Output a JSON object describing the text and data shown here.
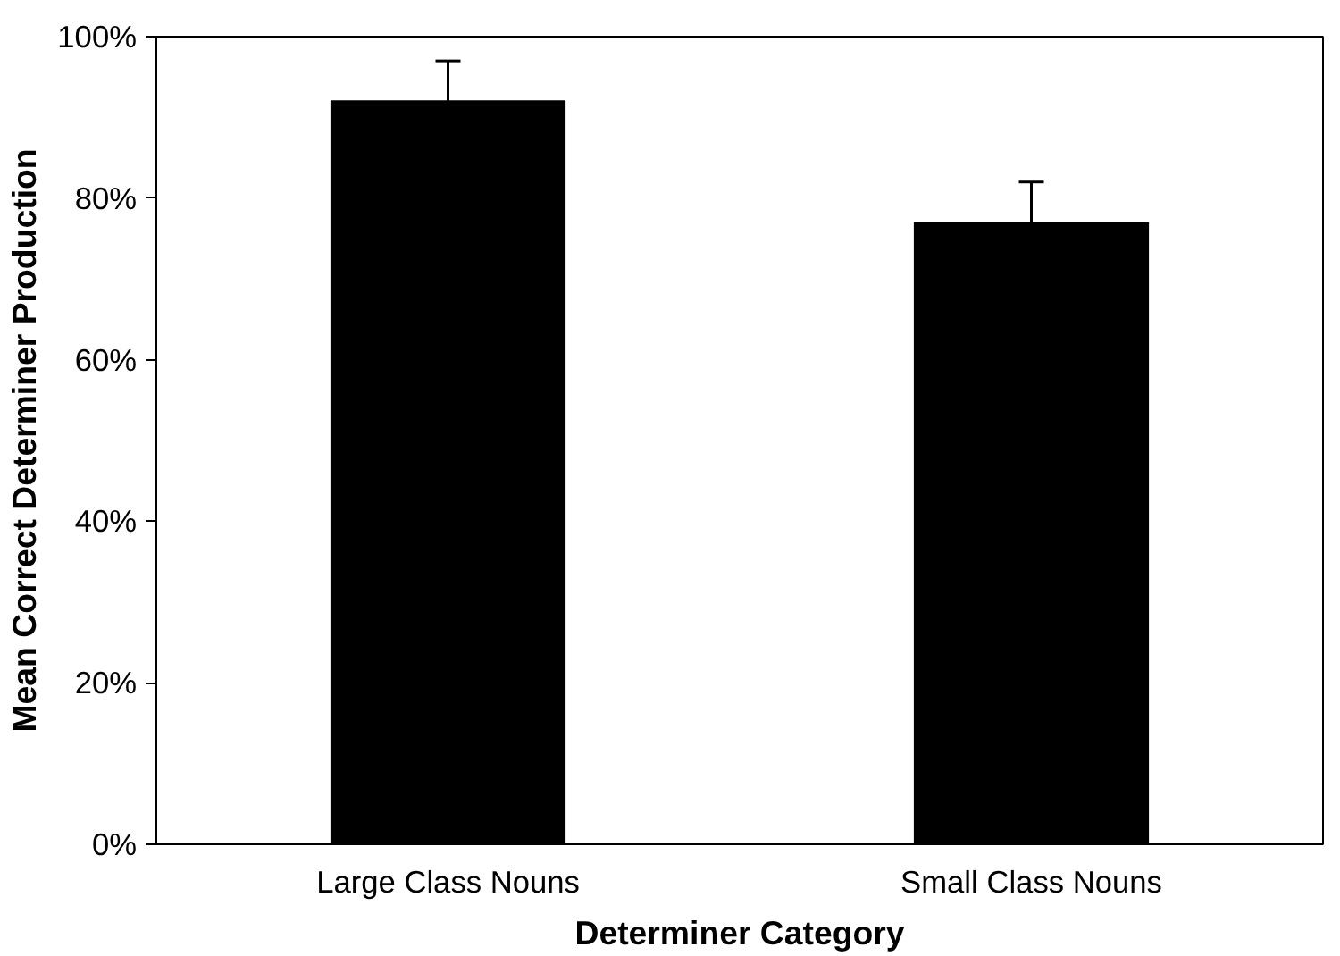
{
  "chart_data": {
    "type": "bar",
    "xlabel": "Determiner Category",
    "ylabel": "Mean Correct Determiner Production",
    "categories": [
      "Large Class Nouns",
      "Small Class Nouns"
    ],
    "values": [
      92,
      77
    ],
    "errors": [
      5,
      5
    ],
    "color": "#000000",
    "ylim": [
      0,
      100
    ],
    "yticks": [
      {
        "value": 0,
        "label": "0%"
      },
      {
        "value": 20,
        "label": "20%"
      },
      {
        "value": 40,
        "label": "40%"
      },
      {
        "value": 60,
        "label": "60%"
      },
      {
        "value": 80,
        "label": "80%"
      },
      {
        "value": 100,
        "label": "100%"
      }
    ],
    "grid": false
  }
}
